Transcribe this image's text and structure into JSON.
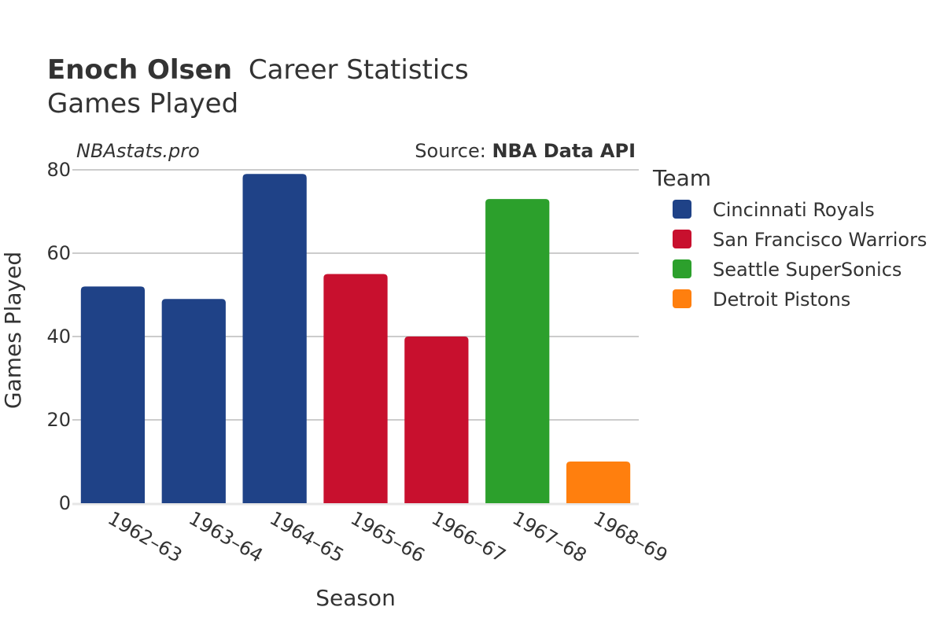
{
  "header": {
    "player_name": "Enoch Olsen",
    "title_rest": "Career Statistics",
    "subtitle": "Games Played",
    "brand": "NBAstats.pro",
    "source_prefix": "Source: ",
    "source_name": "NBA Data API"
  },
  "legend": {
    "title": "Team",
    "placement": "right"
  },
  "chart_data": {
    "type": "bar",
    "xlabel": "Season",
    "ylabel": "Games Played",
    "ylim": [
      0,
      80
    ],
    "yticks": [
      0,
      20,
      40,
      60,
      80
    ],
    "grid": true,
    "categories": [
      "1962–63",
      "1963–64",
      "1964–65",
      "1965–66",
      "1966–67",
      "1967–68",
      "1968–69"
    ],
    "series": [
      {
        "name": "Cincinnati Royals",
        "color": "#1f4287",
        "values": [
          52,
          49,
          79,
          null,
          null,
          null,
          null
        ]
      },
      {
        "name": "San Francisco Warriors",
        "color": "#c8102e",
        "values": [
          null,
          null,
          null,
          55,
          40,
          null,
          null
        ]
      },
      {
        "name": "Seattle SuperSonics",
        "color": "#2ca02c",
        "values": [
          null,
          null,
          null,
          null,
          null,
          73,
          null
        ]
      },
      {
        "name": "Detroit Pistons",
        "color": "#ff7f0e",
        "values": [
          null,
          null,
          null,
          null,
          null,
          null,
          10
        ]
      }
    ]
  }
}
